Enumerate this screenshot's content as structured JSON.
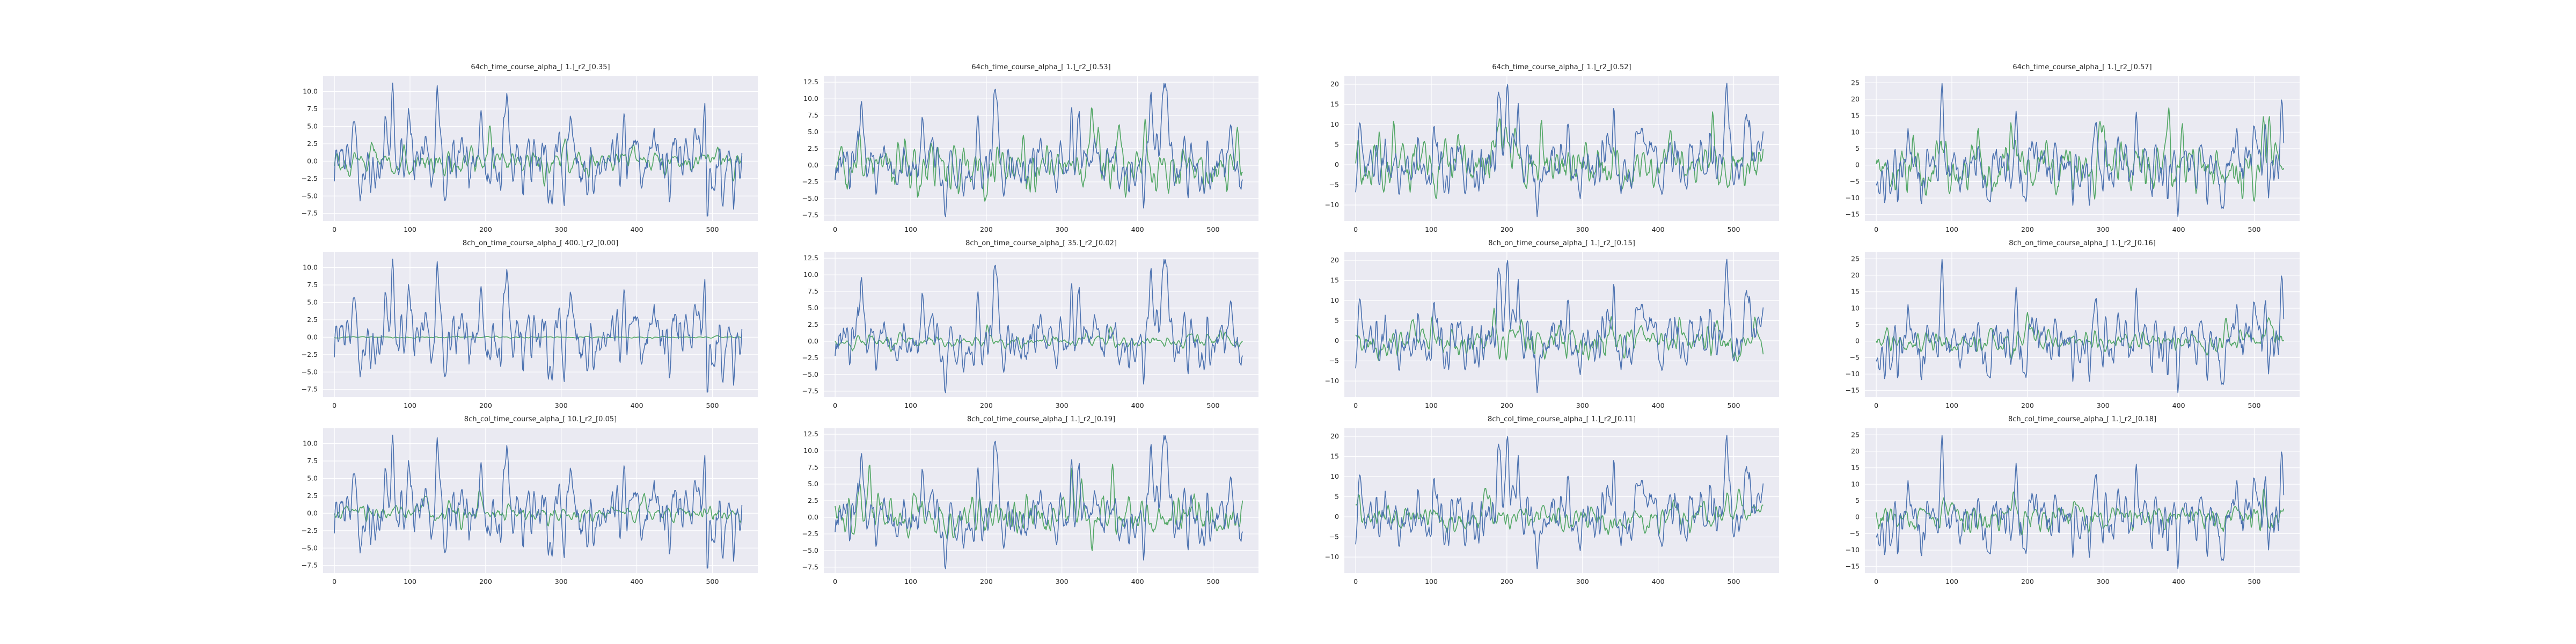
{
  "colors": {
    "background": "#eaeaf2",
    "grid": "#ffffff",
    "predicted": "#4c72b0",
    "target": "#55a868"
  },
  "chart_data": [
    {
      "type": "line",
      "title": "64ch_time_course_alpha_[ 1.]_r2_[0.35]",
      "xlim": [
        -15,
        560
      ],
      "ylim": [
        -8.6,
        12.2
      ],
      "xticks": [
        0,
        100,
        200,
        300,
        400,
        500
      ],
      "yticks": [
        -7.5,
        -5.0,
        -2.5,
        0.0,
        2.5,
        5.0,
        7.5,
        10.0
      ],
      "ytick_labels": [
        "−7.5",
        "−5.0",
        "−2.5",
        "0.0",
        "2.5",
        "5.0",
        "7.5",
        "10.0"
      ],
      "n_points": 540,
      "series": [
        {
          "amp": 1.0,
          "seed": 11
        },
        {
          "amp": 0.45,
          "seed": 101
        }
      ]
    },
    {
      "type": "line",
      "title": "64ch_time_course_alpha_[ 1.]_r2_[0.53]",
      "xlim": [
        -15,
        560
      ],
      "ylim": [
        -8.4,
        13.4
      ],
      "xticks": [
        0,
        100,
        200,
        300,
        400,
        500
      ],
      "yticks": [
        -7.5,
        -5.0,
        -2.5,
        0.0,
        2.5,
        5.0,
        7.5,
        10.0,
        12.5
      ],
      "ytick_labels": [
        "−7.5",
        "−5.0",
        "−2.5",
        "0.0",
        "2.5",
        "5.0",
        "7.5",
        "10.0",
        "12.5"
      ],
      "n_points": 540,
      "series": [
        {
          "amp": 1.0,
          "seed": 12
        },
        {
          "amp": 0.7,
          "seed": 102
        }
      ]
    },
    {
      "type": "line",
      "title": "64ch_time_course_alpha_[ 1.]_r2_[0.52]",
      "xlim": [
        -15,
        560
      ],
      "ylim": [
        -14,
        22
      ],
      "xticks": [
        0,
        100,
        200,
        300,
        400,
        500
      ],
      "yticks": [
        -10,
        -5,
        0,
        5,
        10,
        15,
        20
      ],
      "ytick_labels": [
        "−10",
        "−5",
        "0",
        "5",
        "10",
        "15",
        "20"
      ],
      "n_points": 540,
      "series": [
        {
          "amp": 1.0,
          "seed": 13
        },
        {
          "amp": 0.65,
          "seed": 103
        }
      ]
    },
    {
      "type": "line",
      "title": "64ch_time_course_alpha_[ 1.]_r2_[0.57]",
      "xlim": [
        -15,
        560
      ],
      "ylim": [
        -17,
        27
      ],
      "xticks": [
        0,
        100,
        200,
        300,
        400,
        500
      ],
      "yticks": [
        -15,
        -10,
        -5,
        0,
        5,
        10,
        15,
        20,
        25
      ],
      "ytick_labels": [
        "−15",
        "−10",
        "−5",
        "0",
        "5",
        "10",
        "15",
        "20",
        "25"
      ],
      "n_points": 540,
      "series": [
        {
          "amp": 1.0,
          "seed": 14
        },
        {
          "amp": 0.7,
          "seed": 104
        }
      ]
    },
    {
      "type": "line",
      "title": "8ch_on_time_course_alpha_[ 400.]_r2_[0.00]",
      "xlim": [
        -15,
        560
      ],
      "ylim": [
        -8.6,
        12.2
      ],
      "xticks": [
        0,
        100,
        200,
        300,
        400,
        500
      ],
      "yticks": [
        -7.5,
        -5.0,
        -2.5,
        0.0,
        2.5,
        5.0,
        7.5,
        10.0
      ],
      "ytick_labels": [
        "−7.5",
        "−5.0",
        "−2.5",
        "0.0",
        "2.5",
        "5.0",
        "7.5",
        "10.0"
      ],
      "n_points": 540,
      "series": [
        {
          "amp": 1.0,
          "seed": 11
        },
        {
          "amp": 0.02,
          "seed": 105
        }
      ]
    },
    {
      "type": "line",
      "title": "8ch_on_time_course_alpha_[ 35.]_r2_[0.02]",
      "xlim": [
        -15,
        560
      ],
      "ylim": [
        -8.4,
        13.4
      ],
      "xticks": [
        0,
        100,
        200,
        300,
        400,
        500
      ],
      "yticks": [
        -7.5,
        -5.0,
        -2.5,
        0.0,
        2.5,
        5.0,
        7.5,
        10.0,
        12.5
      ],
      "ytick_labels": [
        "−7.5",
        "−5.0",
        "−2.5",
        "0.0",
        "2.5",
        "5.0",
        "7.5",
        "10.0",
        "12.5"
      ],
      "n_points": 540,
      "series": [
        {
          "amp": 1.0,
          "seed": 12
        },
        {
          "amp": 0.2,
          "seed": 106
        }
      ]
    },
    {
      "type": "line",
      "title": "8ch_on_time_course_alpha_[ 1.]_r2_[0.15]",
      "xlim": [
        -15,
        560
      ],
      "ylim": [
        -14,
        22
      ],
      "xticks": [
        0,
        100,
        200,
        300,
        400,
        500
      ],
      "yticks": [
        -10,
        -5,
        0,
        5,
        10,
        15,
        20
      ],
      "ytick_labels": [
        "−10",
        "−5",
        "0",
        "5",
        "10",
        "15",
        "20"
      ],
      "n_points": 540,
      "series": [
        {
          "amp": 1.0,
          "seed": 13
        },
        {
          "amp": 0.4,
          "seed": 107
        }
      ]
    },
    {
      "type": "line",
      "title": "8ch_on_time_course_alpha_[ 1.]_r2_[0.16]",
      "xlim": [
        -15,
        560
      ],
      "ylim": [
        -17,
        27
      ],
      "xticks": [
        0,
        100,
        200,
        300,
        400,
        500
      ],
      "yticks": [
        -15,
        -10,
        -5,
        0,
        5,
        10,
        15,
        20,
        25
      ],
      "ytick_labels": [
        "−15",
        "−10",
        "−5",
        "0",
        "5",
        "10",
        "15",
        "20",
        "25"
      ],
      "n_points": 540,
      "series": [
        {
          "amp": 1.0,
          "seed": 14
        },
        {
          "amp": 0.35,
          "seed": 108
        }
      ]
    },
    {
      "type": "line",
      "title": "8ch_col_time_course_alpha_[ 10.]_r2_[0.05]",
      "xlim": [
        -15,
        560
      ],
      "ylim": [
        -8.6,
        12.2
      ],
      "xticks": [
        0,
        100,
        200,
        300,
        400,
        500
      ],
      "yticks": [
        -7.5,
        -5.0,
        -2.5,
        0.0,
        2.5,
        5.0,
        7.5,
        10.0
      ],
      "ytick_labels": [
        "−7.5",
        "−5.0",
        "−2.5",
        "0.0",
        "2.5",
        "5.0",
        "7.5",
        "10.0"
      ],
      "n_points": 540,
      "series": [
        {
          "amp": 1.0,
          "seed": 11
        },
        {
          "amp": 0.3,
          "seed": 109
        }
      ]
    },
    {
      "type": "line",
      "title": "8ch_col_time_course_alpha_[ 1.]_r2_[0.19]",
      "xlim": [
        -15,
        560
      ],
      "ylim": [
        -8.4,
        13.4
      ],
      "xticks": [
        0,
        100,
        200,
        300,
        400,
        500
      ],
      "yticks": [
        -7.5,
        -5.0,
        -2.5,
        0.0,
        2.5,
        5.0,
        7.5,
        10.0,
        12.5
      ],
      "ytick_labels": [
        "−7.5",
        "−5.0",
        "−2.5",
        "0.0",
        "2.5",
        "5.0",
        "7.5",
        "10.0",
        "12.5"
      ],
      "n_points": 540,
      "series": [
        {
          "amp": 1.0,
          "seed": 12
        },
        {
          "amp": 0.65,
          "seed": 110
        }
      ]
    },
    {
      "type": "line",
      "title": "8ch_col_time_course_alpha_[ 1.]_r2_[0.11]",
      "xlim": [
        -15,
        560
      ],
      "ylim": [
        -14,
        22
      ],
      "xticks": [
        0,
        100,
        200,
        300,
        400,
        500
      ],
      "yticks": [
        -10,
        -5,
        0,
        5,
        10,
        15,
        20
      ],
      "ytick_labels": [
        "−10",
        "−5",
        "0",
        "5",
        "10",
        "15",
        "20"
      ],
      "n_points": 540,
      "series": [
        {
          "amp": 1.0,
          "seed": 13
        },
        {
          "amp": 0.35,
          "seed": 111
        }
      ]
    },
    {
      "type": "line",
      "title": "8ch_col_time_course_alpha_[ 1.]_r2_[0.18]",
      "xlim": [
        -15,
        560
      ],
      "ylim": [
        -17,
        27
      ],
      "xticks": [
        0,
        100,
        200,
        300,
        400,
        500
      ],
      "yticks": [
        -15,
        -10,
        -5,
        0,
        5,
        10,
        15,
        20,
        25
      ],
      "ytick_labels": [
        "−15",
        "−10",
        "−5",
        "0",
        "5",
        "10",
        "15",
        "20",
        "25"
      ],
      "n_points": 540,
      "series": [
        {
          "amp": 1.0,
          "seed": 14
        },
        {
          "amp": 0.35,
          "seed": 112
        }
      ]
    }
  ]
}
